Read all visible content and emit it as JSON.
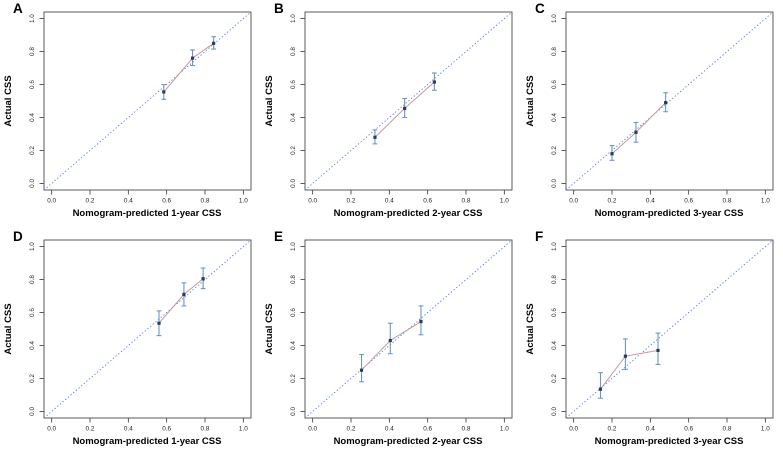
{
  "figure": {
    "background": "#ffffff",
    "rows": 2,
    "cols": 3
  },
  "colors": {
    "diagonal": "#4f7bd9",
    "error_bar": "#6d96c8",
    "point": "#2b3a5e",
    "connector": "#c49a9a",
    "axis": "#333333",
    "tick_text": "#222222"
  },
  "axes": {
    "ticks": [
      0.0,
      0.2,
      0.4,
      0.6,
      0.8,
      1.0
    ],
    "tick_labels": [
      "0.0",
      "0.2",
      "0.4",
      "0.6",
      "0.8",
      "1.0"
    ],
    "range_pad": 0.04
  },
  "chart_data": [
    {
      "panel": "A",
      "type": "scatter",
      "xlabel": "Nomogram-predicted 1-year CSS",
      "ylabel": "Actual CSS",
      "xlim": [
        0,
        1
      ],
      "ylim": [
        0,
        1
      ],
      "diagonal_reference": true,
      "points": [
        {
          "x": 0.585,
          "y": 0.555,
          "lo": 0.51,
          "hi": 0.6
        },
        {
          "x": 0.735,
          "y": 0.76,
          "lo": 0.715,
          "hi": 0.81
        },
        {
          "x": 0.845,
          "y": 0.85,
          "lo": 0.815,
          "hi": 0.89
        }
      ]
    },
    {
      "panel": "B",
      "type": "scatter",
      "xlabel": "Nomogram-predicted 2-year CSS",
      "ylabel": "Actual CSS",
      "xlim": [
        0,
        1
      ],
      "ylim": [
        0,
        1
      ],
      "diagonal_reference": true,
      "points": [
        {
          "x": 0.325,
          "y": 0.28,
          "lo": 0.24,
          "hi": 0.325
        },
        {
          "x": 0.48,
          "y": 0.455,
          "lo": 0.4,
          "hi": 0.515
        },
        {
          "x": 0.635,
          "y": 0.615,
          "lo": 0.565,
          "hi": 0.67
        }
      ]
    },
    {
      "panel": "C",
      "type": "scatter",
      "xlabel": "Nomogram-predicted 3-year CSS",
      "ylabel": "Actual CSS",
      "xlim": [
        0,
        1
      ],
      "ylim": [
        0,
        1
      ],
      "diagonal_reference": true,
      "points": [
        {
          "x": 0.2,
          "y": 0.18,
          "lo": 0.14,
          "hi": 0.23
        },
        {
          "x": 0.325,
          "y": 0.31,
          "lo": 0.25,
          "hi": 0.37
        },
        {
          "x": 0.48,
          "y": 0.49,
          "lo": 0.435,
          "hi": 0.55
        }
      ]
    },
    {
      "panel": "D",
      "type": "scatter",
      "xlabel": "Nomogram-predicted 1-year CSS",
      "ylabel": "Actual CSS",
      "xlim": [
        0,
        1
      ],
      "ylim": [
        0,
        1
      ],
      "diagonal_reference": true,
      "points": [
        {
          "x": 0.56,
          "y": 0.535,
          "lo": 0.46,
          "hi": 0.61
        },
        {
          "x": 0.69,
          "y": 0.71,
          "lo": 0.64,
          "hi": 0.78
        },
        {
          "x": 0.79,
          "y": 0.805,
          "lo": 0.745,
          "hi": 0.87
        }
      ]
    },
    {
      "panel": "E",
      "type": "scatter",
      "xlabel": "Nomogram-predicted 2-year CSS",
      "ylabel": "Actual CSS",
      "xlim": [
        0,
        1
      ],
      "ylim": [
        0,
        1
      ],
      "diagonal_reference": true,
      "points": [
        {
          "x": 0.255,
          "y": 0.25,
          "lo": 0.18,
          "hi": 0.345
        },
        {
          "x": 0.405,
          "y": 0.43,
          "lo": 0.35,
          "hi": 0.535
        },
        {
          "x": 0.565,
          "y": 0.545,
          "lo": 0.465,
          "hi": 0.64
        }
      ]
    },
    {
      "panel": "F",
      "type": "scatter",
      "xlabel": "Nomogram-predicted 3-year CSS",
      "ylabel": "Actual CSS",
      "xlim": [
        0,
        1
      ],
      "ylim": [
        0,
        1
      ],
      "diagonal_reference": true,
      "points": [
        {
          "x": 0.14,
          "y": 0.135,
          "lo": 0.08,
          "hi": 0.235
        },
        {
          "x": 0.27,
          "y": 0.335,
          "lo": 0.255,
          "hi": 0.44
        },
        {
          "x": 0.44,
          "y": 0.37,
          "lo": 0.285,
          "hi": 0.475
        }
      ]
    }
  ]
}
